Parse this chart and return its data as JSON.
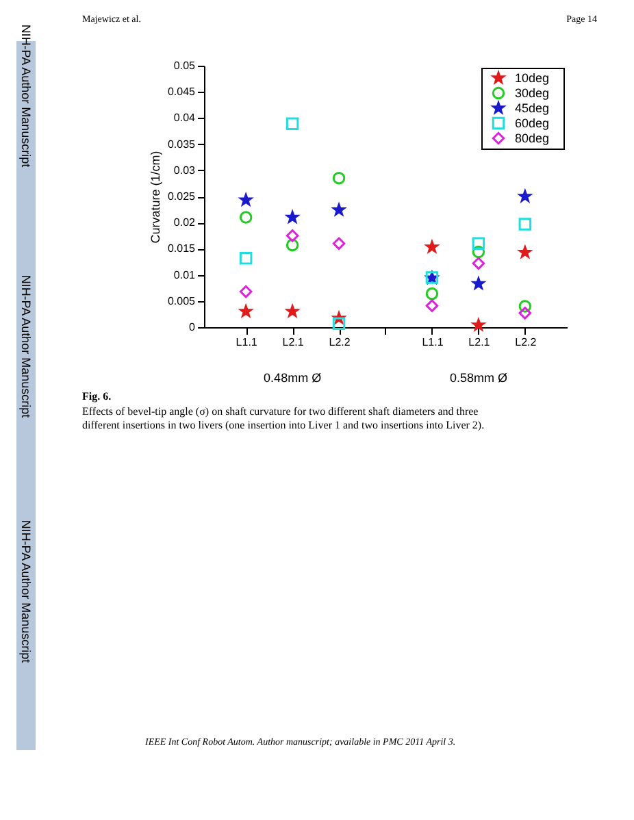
{
  "chart_data": {
    "type": "scatter",
    "categories": [
      "L1.1",
      "L2.1",
      "L2.2",
      null,
      "L1.1",
      "L2.1",
      "L2.2"
    ],
    "ylabel": "Curvature (1/cm)",
    "ylim": [
      0,
      0.05
    ],
    "yticks": [
      0,
      0.005,
      0.01,
      0.015,
      0.02,
      0.025,
      0.03,
      0.035,
      0.04,
      0.045,
      0.05
    ],
    "grid": false,
    "legend": "top right",
    "series": [
      {
        "name": "10deg",
        "color": "#e01b1b",
        "marker": "star",
        "values": [
          0.003,
          0.003,
          0.0017,
          null,
          0.0153,
          0.0004,
          0.0143
        ]
      },
      {
        "name": "30deg",
        "color": "#22cc22",
        "marker": "circle",
        "values": [
          0.021,
          0.0157,
          0.0285,
          null,
          0.0064,
          0.0144,
          0.004
        ]
      },
      {
        "name": "45deg",
        "color": "#1a1acc",
        "marker": "star",
        "values": [
          0.0243,
          0.021,
          0.0224,
          null,
          0.0094,
          0.0083,
          0.025
        ]
      },
      {
        "name": "60deg",
        "color": "#22dddd",
        "marker": "square",
        "values": [
          0.0132,
          0.0389,
          0.0007,
          null,
          0.0095,
          0.016,
          0.0197
        ]
      },
      {
        "name": "80deg",
        "color": "#dd22dd",
        "marker": "diamond",
        "values": [
          0.0068,
          0.0175,
          0.016,
          null,
          0.0041,
          0.0122,
          0.0027
        ]
      }
    ],
    "annotations": [
      "Majewicz et al.",
      "Page 14",
      "NIH-PA Author Manuscript",
      "NIH-PA Author Manuscript",
      "NIH-PA Author Manuscript",
      "0.48mm Ø",
      "0.58mm Ø",
      "Fig. 6.",
      "Effects of bevel-tip angle (σ) on shaft curvature for two different shaft diameters and three",
      "different insertions in two livers (one insertion into Liver 1 and two insertions into Liver 2).",
      "IEEE Int Conf Robot Autom. Author manuscript; available in PMC 2011 April 3."
    ]
  }
}
